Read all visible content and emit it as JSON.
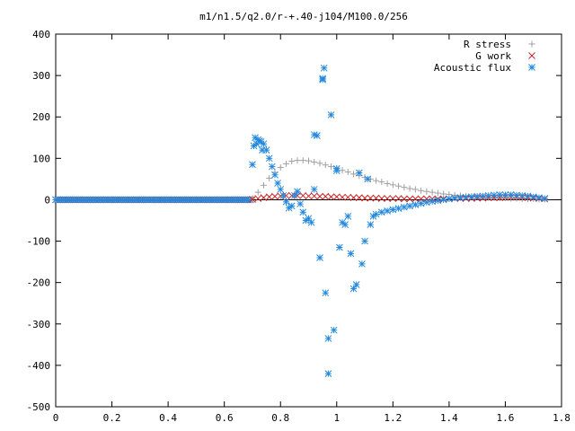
{
  "chart_data": {
    "type": "scatter",
    "title": "m1/n1.5/q2.0/r-+.40-j104/M100.0/256",
    "xlabel": "",
    "ylabel": "",
    "xlim": [
      0,
      1.8
    ],
    "ylim": [
      -500,
      400
    ],
    "xticks": [
      0,
      0.2,
      0.4,
      0.6,
      0.8,
      1,
      1.2,
      1.4,
      1.6,
      1.8
    ],
    "xtick_labels": [
      "0",
      "0.2",
      "0.4",
      "0.6",
      "0.8",
      "1",
      "1.2",
      "1.4",
      "1.6",
      "1.8"
    ],
    "yticks": [
      -500,
      -400,
      -300,
      -200,
      -100,
      0,
      100,
      200,
      300,
      400
    ],
    "ytick_labels": [
      "-500",
      "-400",
      "-300",
      "-200",
      "-100",
      "0",
      "100",
      "200",
      "300",
      "400"
    ],
    "grid": false,
    "legend_position": "top-right",
    "series": [
      {
        "name": "R stress",
        "marker": "plus",
        "color": "#a0a0a0",
        "x": [
          0.7,
          0.72,
          0.74,
          0.76,
          0.78,
          0.8,
          0.82,
          0.84,
          0.86,
          0.88,
          0.9,
          0.92,
          0.94,
          0.96,
          0.98,
          1.0,
          1.02,
          1.04,
          1.06,
          1.08,
          1.1,
          1.12,
          1.14,
          1.16,
          1.18,
          1.2,
          1.22,
          1.24,
          1.26,
          1.28,
          1.3,
          1.32,
          1.34,
          1.36,
          1.38,
          1.4,
          1.42,
          1.44,
          1.46,
          1.48,
          1.5,
          1.52,
          1.54,
          1.56,
          1.58,
          1.6,
          1.62,
          1.64,
          1.66,
          1.68,
          1.7,
          1.72,
          1.74
        ],
        "y": [
          3,
          18,
          35,
          52,
          66,
          78,
          87,
          93,
          95,
          95,
          94,
          91,
          88,
          84,
          80,
          76,
          71,
          67,
          62,
          58,
          54,
          50,
          46,
          43,
          39,
          36,
          33,
          30,
          27,
          25,
          22,
          20,
          18,
          16,
          14,
          13,
          11,
          10,
          9,
          8,
          7,
          6,
          5,
          5,
          4,
          4,
          3,
          3,
          2,
          2,
          2,
          1,
          1
        ]
      },
      {
        "name": "G work",
        "marker": "cross",
        "color": "#cc2222",
        "x": [
          0.7,
          0.72,
          0.74,
          0.76,
          0.78,
          0.8,
          0.82,
          0.84,
          0.86,
          0.88,
          0.9,
          0.92,
          0.94,
          0.96,
          0.98,
          1.0,
          1.02,
          1.04,
          1.06,
          1.08,
          1.1,
          1.12,
          1.14,
          1.16,
          1.18,
          1.2,
          1.22,
          1.24,
          1.26,
          1.28,
          1.3,
          1.32,
          1.34,
          1.36,
          1.38,
          1.4,
          1.42,
          1.44,
          1.46,
          1.48,
          1.5,
          1.52,
          1.54,
          1.56,
          1.58,
          1.6,
          1.62,
          1.64,
          1.66,
          1.68,
          1.7,
          1.72,
          1.74
        ],
        "y": [
          1,
          3,
          5,
          7,
          8,
          9,
          10,
          10,
          10,
          10,
          9,
          9,
          8,
          8,
          7,
          7,
          6,
          6,
          5,
          5,
          4,
          4,
          4,
          3,
          3,
          3,
          3,
          2,
          2,
          2,
          2,
          2,
          2,
          2,
          2,
          2,
          3,
          3,
          3,
          3,
          4,
          4,
          5,
          5,
          5,
          6,
          6,
          6,
          6,
          5,
          4,
          3,
          2
        ]
      },
      {
        "name": "Acoustic flux",
        "marker": "star",
        "color": "#2288dd",
        "x": [
          0.7,
          0.71,
          0.72,
          0.73,
          0.74,
          0.75,
          0.76,
          0.77,
          0.78,
          0.79,
          0.8,
          0.81,
          0.82,
          0.83,
          0.84,
          0.85,
          0.86,
          0.87,
          0.88,
          0.89,
          0.9,
          0.91,
          0.92,
          0.93,
          0.94,
          0.95,
          0.96,
          0.97,
          0.98,
          0.99,
          1.0,
          1.01,
          1.02,
          1.03,
          1.04,
          1.05,
          1.06,
          1.07,
          1.08,
          1.09,
          1.1,
          1.11,
          1.12,
          1.13,
          1.14,
          1.16,
          1.18,
          1.2,
          1.22,
          1.24,
          1.26,
          1.28,
          1.3,
          1.32,
          1.34,
          1.36,
          1.38,
          1.4,
          1.42,
          1.44,
          1.46,
          1.48,
          1.5,
          1.52,
          1.54,
          1.56,
          1.58,
          1.6,
          1.62,
          1.64,
          1.66,
          1.68,
          1.7,
          1.72,
          1.74,
          0.705,
          0.715,
          0.725,
          0.735
        ],
        "y": [
          85,
          150,
          145,
          140,
          135,
          120,
          100,
          80,
          60,
          40,
          25,
          10,
          -5,
          -20,
          -15,
          10,
          20,
          -10,
          -30,
          -50,
          -45,
          -55,
          25,
          155,
          -140,
          290,
          -225,
          -335,
          205,
          -315,
          70,
          -115,
          -55,
          -60,
          -40,
          -130,
          -215,
          -205,
          65,
          -155,
          -100,
          50,
          -60,
          -40,
          -35,
          -30,
          -27,
          -24,
          -21,
          -18,
          -15,
          -12,
          -9,
          -6,
          -4,
          -2,
          0,
          2,
          4,
          5,
          6,
          7,
          8,
          9,
          10,
          11,
          12,
          12,
          12,
          11,
          10,
          9,
          7,
          5,
          3,
          130,
          135,
          142,
          120
        ]
      }
    ]
  },
  "extra_points": {
    "acoustic_flux_outliers": [
      {
        "x": 0.955,
        "y": 318
      },
      {
        "x": 0.97,
        "y": -420
      },
      {
        "x": 0.95,
        "y": 293
      },
      {
        "x": 0.92,
        "y": 157
      },
      {
        "x": 1.0,
        "y": 75
      }
    ]
  }
}
